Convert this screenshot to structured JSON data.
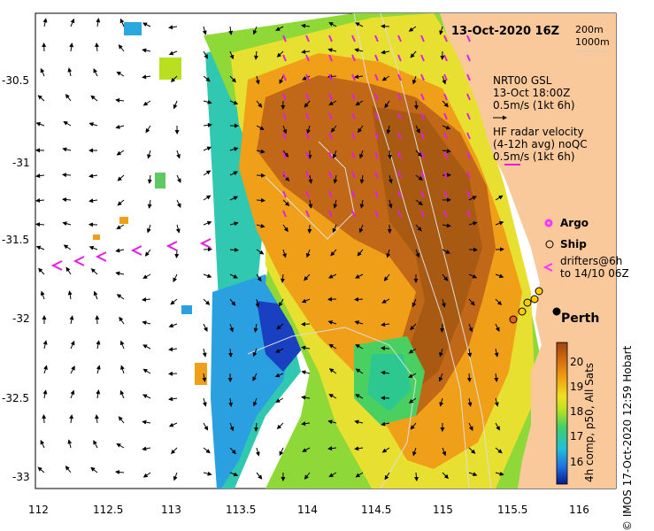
{
  "title": "13-Oct-2020 16Z",
  "isobaths": {
    "a": "200m",
    "b": "1000m"
  },
  "gsl": {
    "line1": "NRT00 GSL",
    "line2": "13-Oct 18:00Z",
    "line3": "0.5m/s (1kt 6h)"
  },
  "hf": {
    "line1": "HF radar velocity",
    "line2": "(4-12h avg) noQC",
    "line3": "0.5m/s (1kt 6h)"
  },
  "legend": {
    "argo": "Argo",
    "ship": "Ship",
    "drifters1": "drifters@6h",
    "drifters2": "to 14/10 06Z"
  },
  "city": "Perth",
  "colorbar": {
    "ticks": [
      "16",
      "17",
      "18",
      "19",
      "20"
    ],
    "label": "4h comp, p50, All Sats"
  },
  "credit": "© IMOS 17-Oct-2020 12:59 Hobart",
  "axes": {
    "x_ticks": [
      "112",
      "112.5",
      "113",
      "113.5",
      "114",
      "114.5",
      "115",
      "115.5",
      "116"
    ],
    "y_ticks": [
      "-30.5",
      "-31",
      "-31.5",
      "-32",
      "-32.5",
      "-33"
    ]
  },
  "colors": {
    "land": "#f9c89b",
    "argo": "#ff33ff",
    "ship": "#ffcc00",
    "hf_arrow": "#e020e0"
  }
}
